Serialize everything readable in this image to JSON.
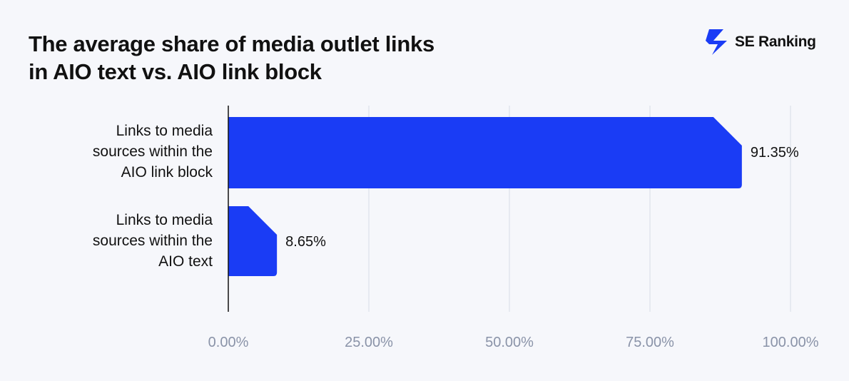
{
  "header": {
    "title_line1": "The average share of media outlet links",
    "title_line2": "in AIO text vs. AIO link block"
  },
  "brand": {
    "name": "SE Ranking",
    "icon": "se-ranking-logo-icon",
    "color": "#1a3cf5"
  },
  "chart_data": {
    "type": "bar",
    "orientation": "horizontal",
    "title": "The average share of media outlet links in AIO text vs. AIO link block",
    "categories": [
      [
        "Links to media",
        "sources within the",
        "AIO link block"
      ],
      [
        "Links to media",
        "sources within the",
        "AIO text"
      ]
    ],
    "values": [
      91.35,
      8.65
    ],
    "value_labels": [
      "91.35%",
      "8.65%"
    ],
    "xlim": [
      0,
      100
    ],
    "x_ticks": [
      0,
      25,
      50,
      75,
      100
    ],
    "x_tick_labels": [
      "0.00%",
      "25.00%",
      "50.00%",
      "75.00%",
      "100.00%"
    ],
    "grid": true,
    "bar_color": "#1a3cf5",
    "xlabel": "",
    "ylabel": ""
  }
}
